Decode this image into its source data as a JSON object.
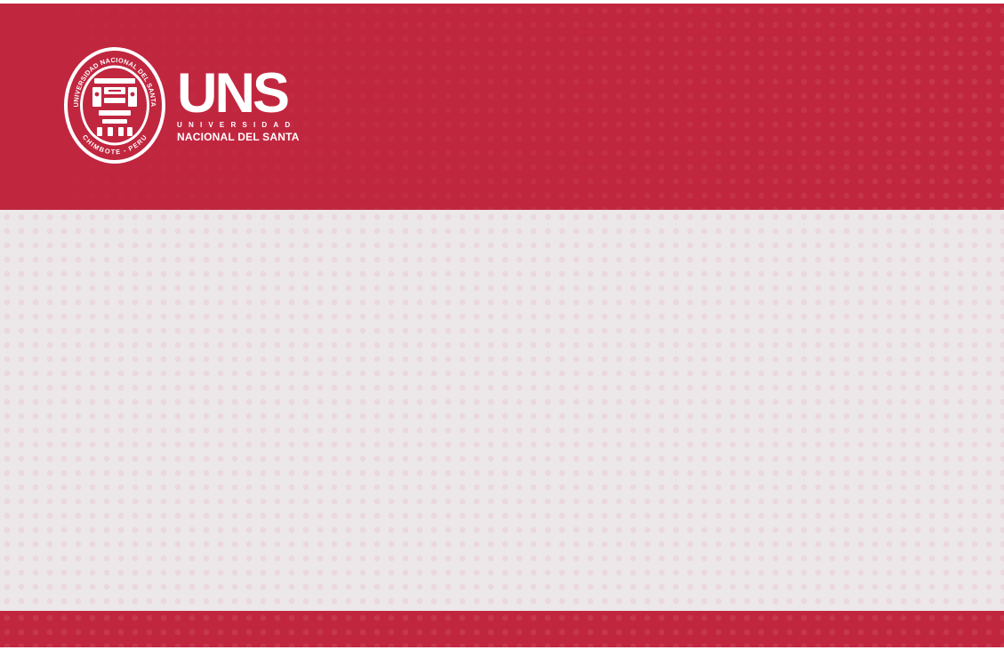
{
  "brand": {
    "acronym": "UNS",
    "line1": "UNIVERSIDAD",
    "line2": "NACIONAL DEL SANTA",
    "seal_top_text": "UNIVERSIDAD NACIONAL DEL SANTA",
    "seal_bottom_text": "CHIMBOTE - PERU"
  },
  "colors": {
    "brand_red": "#c1263f",
    "panel_gray": "#ece7e8",
    "white": "#ffffff"
  }
}
